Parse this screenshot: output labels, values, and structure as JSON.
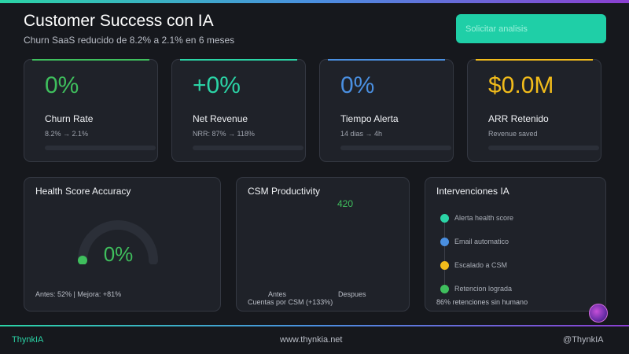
{
  "header": {
    "title": "Customer Success con IA",
    "subtitle": "Churn SaaS reducido de 8.2% a 2.1% en 6 meses",
    "cta_label": "Solicitar analisis"
  },
  "kpis": [
    {
      "value": "0%",
      "label": "Churn Rate",
      "sub": "8.2% → 2.1%",
      "color": "#3fbf5d",
      "progress": 0
    },
    {
      "value": "+0%",
      "label": "Net Revenue",
      "sub": "NRR: 87% → 118%",
      "color": "#2bd4a6",
      "progress": 0
    },
    {
      "value": "0%",
      "label": "Tiempo Alerta",
      "sub": "14 dias → 4h",
      "color": "#4a8fe0",
      "progress": 0
    },
    {
      "value": "$0.0M",
      "label": "ARR Retenido",
      "sub": "Revenue saved",
      "color": "#f2bc1b",
      "progress": 0
    }
  ],
  "health_panel": {
    "title": "Health Score Accuracy",
    "value": "0%",
    "gauge_fraction": 0,
    "footer": "Antes: 52%  |  Mejora: +81%"
  },
  "csm_panel": {
    "title": "CSM Productivity",
    "value": "420",
    "bars": [
      {
        "label": "Antes",
        "fraction": 0
      },
      {
        "label": "Despues",
        "fraction": 0
      }
    ],
    "footer": "Cuentas por CSM (+133%)"
  },
  "interventions_panel": {
    "title": "Intervenciones IA",
    "steps": [
      {
        "label": "Alerta health score",
        "color": "#2bd4a6"
      },
      {
        "label": "Email automatico",
        "color": "#4a8fe0"
      },
      {
        "label": "Escalado a CSM",
        "color": "#f2bc1b"
      },
      {
        "label": "Retencion lograda",
        "color": "#3fbf5d"
      }
    ],
    "footer": "86% retenciones sin humano"
  },
  "footer": {
    "brand": "ThynkIA",
    "url": "www.thynkia.net",
    "handle": "@ThynkIA"
  }
}
